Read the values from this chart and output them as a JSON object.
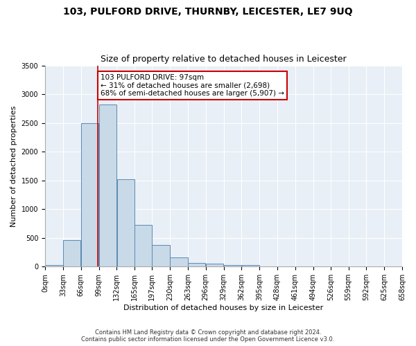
{
  "title1": "103, PULFORD DRIVE, THURNBY, LEICESTER, LE7 9UQ",
  "title2": "Size of property relative to detached houses in Leicester",
  "xlabel": "Distribution of detached houses by size in Leicester",
  "ylabel": "Number of detached properties",
  "footnote1": "Contains HM Land Registry data © Crown copyright and database right 2024.",
  "footnote2": "Contains public sector information licensed under the Open Government Licence v3.0.",
  "annotation_line1": "103 PULFORD DRIVE: 97sqm",
  "annotation_line2": "← 31% of detached houses are smaller (2,698)",
  "annotation_line3": "68% of semi-detached houses are larger (5,907) →",
  "property_sqm": 97,
  "bins": [
    0,
    33,
    66,
    99,
    132,
    165,
    197,
    230,
    263,
    296,
    329,
    362,
    395,
    428,
    461,
    494,
    526,
    559,
    592,
    625,
    658
  ],
  "counts": [
    25,
    460,
    2500,
    2820,
    1520,
    730,
    380,
    155,
    70,
    50,
    30,
    30,
    10,
    5,
    5,
    5,
    2,
    2,
    2,
    2
  ],
  "bar_color": "#c8d9e8",
  "bar_edge_color": "#5a8ab5",
  "line_color": "#cc0000",
  "background_color": "#e8eff6",
  "ylim": [
    0,
    3500
  ],
  "yticks": [
    0,
    500,
    1000,
    1500,
    2000,
    2500,
    3000,
    3500
  ],
  "annotation_box_edge": "#cc0000",
  "annotation_fontsize": 7.5,
  "title1_fontsize": 10,
  "title2_fontsize": 9,
  "xlabel_fontsize": 8,
  "ylabel_fontsize": 8,
  "tick_fontsize": 7,
  "footnote_fontsize": 6
}
